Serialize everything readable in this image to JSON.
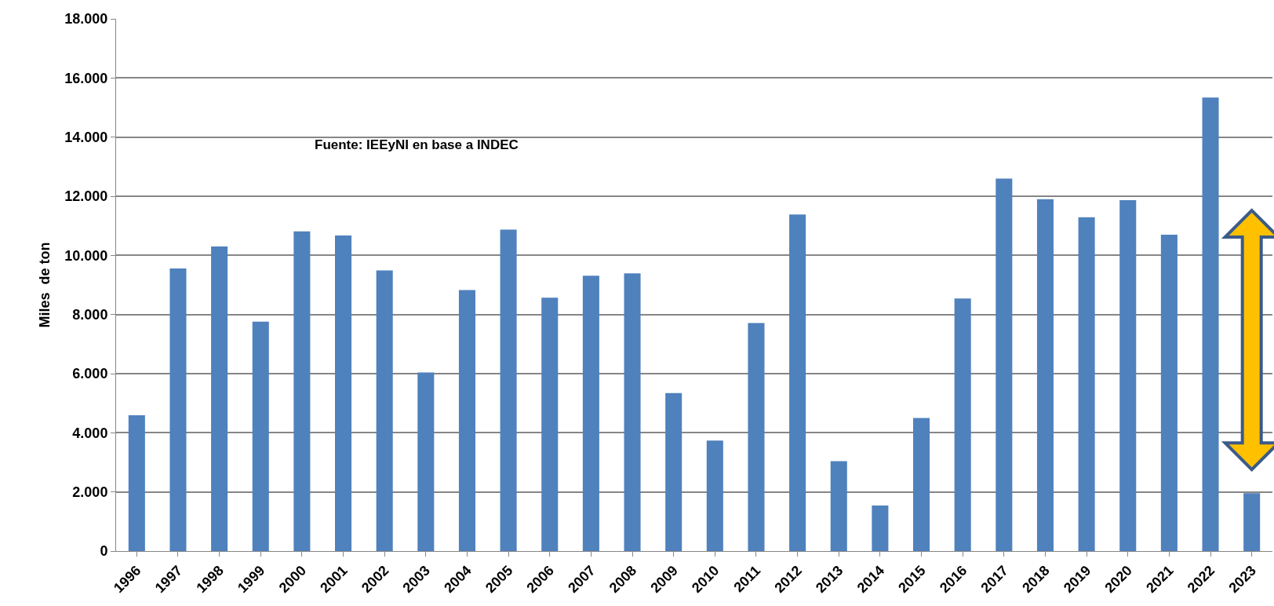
{
  "chart_data": {
    "type": "bar",
    "ylabel": "Miles  de ton",
    "categories": [
      "1996",
      "1997",
      "1998",
      "1999",
      "2000",
      "2001",
      "2002",
      "2003",
      "2004",
      "2005",
      "2006",
      "2007",
      "2008",
      "2009",
      "2010",
      "2011",
      "2012",
      "2013",
      "2014",
      "2015",
      "2016",
      "2017",
      "2018",
      "2019",
      "2020",
      "2021",
      "2022",
      "2023"
    ],
    "values": [
      4590,
      9560,
      10300,
      7760,
      10810,
      10670,
      9490,
      6040,
      8830,
      10870,
      8570,
      9310,
      9390,
      5340,
      3740,
      7710,
      11380,
      3040,
      1540,
      4500,
      8540,
      12600,
      11900,
      11290,
      11870,
      10700,
      15340,
      1960
    ],
    "color": "#4f81bd",
    "ylim": [
      0,
      18000
    ],
    "yticks": [
      0,
      {
        "value": 2000,
        "label": "2.000"
      },
      {
        "value": 4000,
        "label": "4.000"
      },
      {
        "value": 6000,
        "label": "6.000"
      },
      {
        "value": 8000,
        "label": "8.000"
      },
      {
        "value": 10000,
        "label": "10.000"
      },
      {
        "value": 12000,
        "label": "12.000"
      },
      {
        "value": 14000,
        "label": "14.000"
      },
      {
        "value": 16000,
        "label": "16.000"
      },
      {
        "value": 18000,
        "label": "18.000"
      }
    ],
    "grid": "y",
    "annotations": [
      "Fuente: IEEyNI en base a INDEC"
    ]
  }
}
